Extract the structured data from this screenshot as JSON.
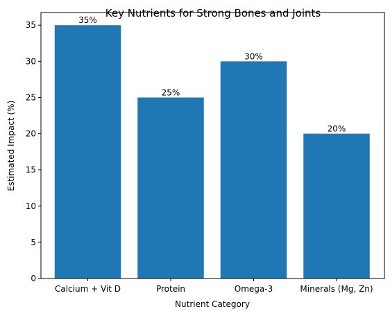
{
  "chart_data": {
    "type": "bar",
    "title": "Key Nutrients for Strong Bones and Joints",
    "xlabel": "Nutrient Category",
    "ylabel": "Estimated Impact (%)",
    "categories": [
      "Calcium + Vit D",
      "Protein",
      "Omega-3",
      "Minerals (Mg, Zn)"
    ],
    "values": [
      35,
      25,
      30,
      20
    ],
    "data_labels": [
      "35%",
      "25%",
      "30%",
      "20%"
    ],
    "ylim": [
      0,
      36.75
    ],
    "yticks": [
      0,
      5,
      10,
      15,
      20,
      25,
      30,
      35
    ],
    "bar_color": "#1f77b4",
    "grid": false,
    "legend": "none"
  }
}
